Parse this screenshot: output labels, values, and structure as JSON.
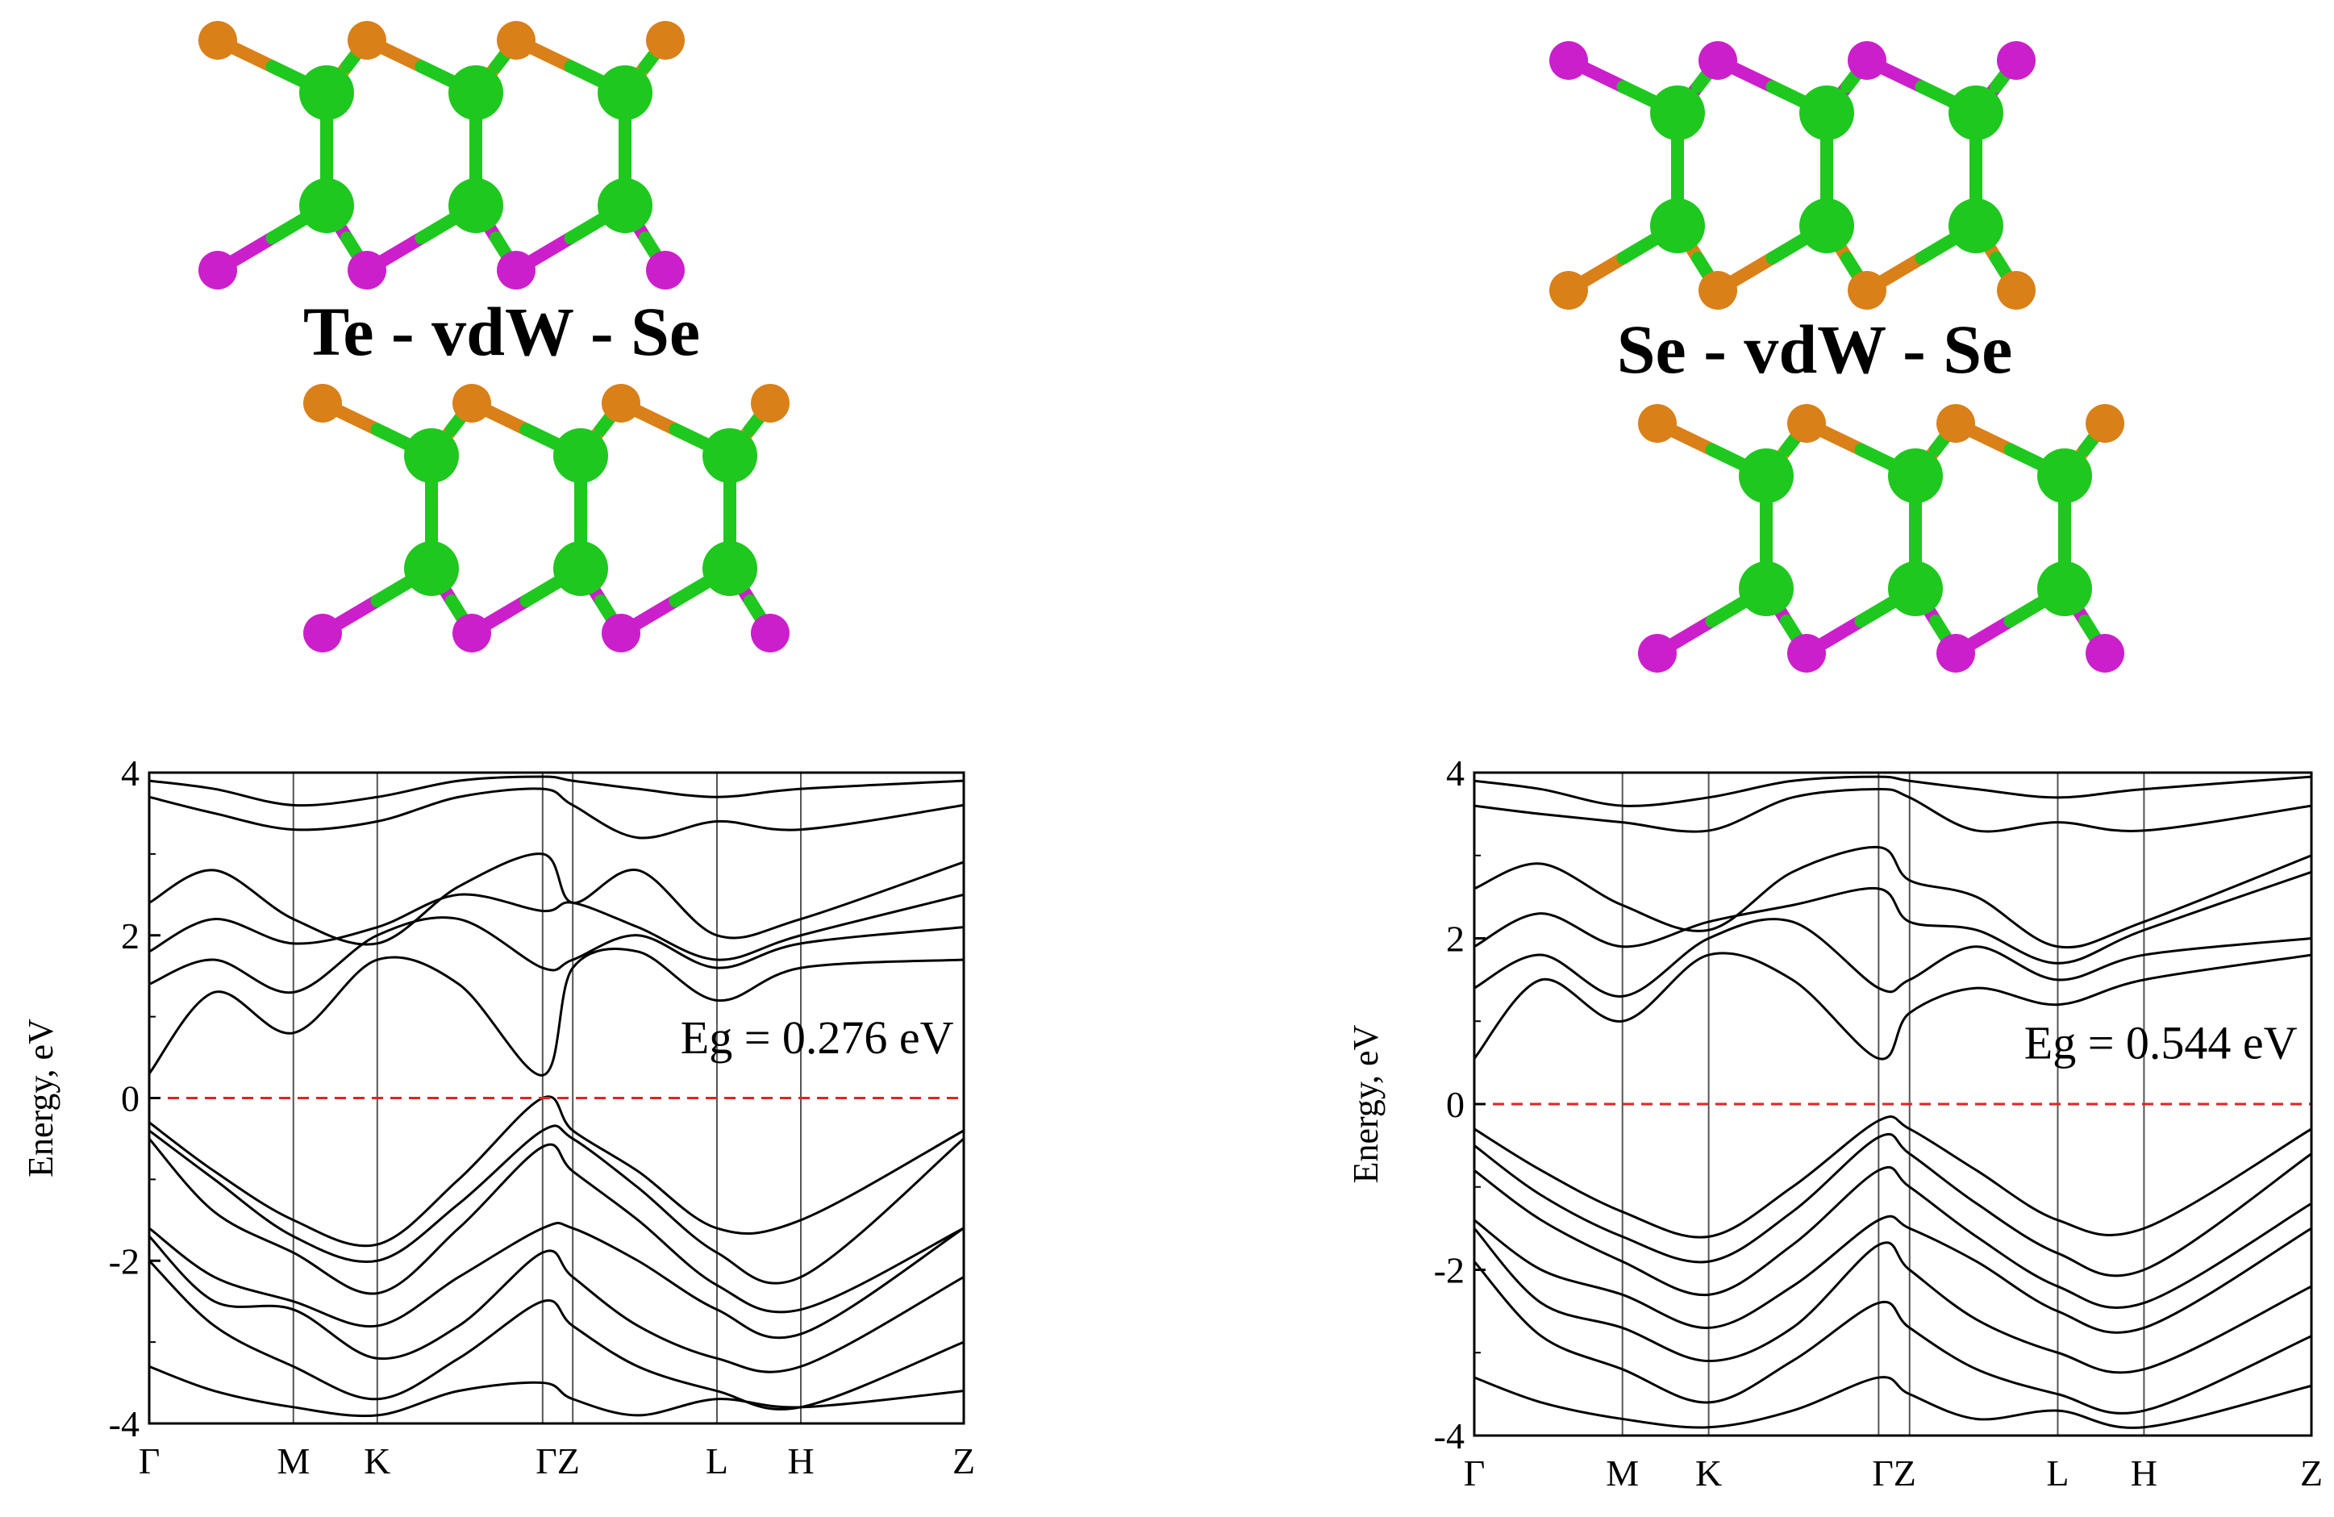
{
  "structures": [
    {
      "label": "Te - vdW - Se",
      "top_layer": {
        "upper_atom": "orange",
        "lower_atom": "magenta"
      },
      "bottom_layer": {
        "upper_atom": "orange",
        "lower_atom": "magenta"
      }
    },
    {
      "label": "Se - vdW - Se",
      "top_layer": {
        "upper_atom": "magenta",
        "lower_atom": "orange"
      },
      "bottom_layer": {
        "upper_atom": "orange",
        "lower_atom": "magenta"
      }
    }
  ],
  "atom_colors": {
    "green": "#1ec81e",
    "orange": "#d98018",
    "magenta": "#cc1fcc"
  },
  "fermi_color": "#e32222",
  "band_color": "#000000",
  "chart_data": [
    {
      "type": "line",
      "ylabel": "Energy, eV",
      "ylim": [
        -4,
        4
      ],
      "yticks": [
        "4",
        "2",
        "0",
        "-2",
        "-4"
      ],
      "kpoints": [
        {
          "label": "Γ",
          "x": 0
        },
        {
          "label": "M",
          "x": 0.177
        },
        {
          "label": "K",
          "x": 0.28
        },
        {
          "label": "Γ",
          "x": 0.483
        },
        {
          "label": "Z",
          "x": 0.52
        },
        {
          "label": "L",
          "x": 0.697
        },
        {
          "label": "H",
          "x": 0.8
        },
        {
          "label": "Z",
          "x": 1.0
        }
      ],
      "kpoint_text": [
        "Γ",
        "M",
        "K",
        "ΓZ",
        "L",
        "H",
        "Z"
      ],
      "annotation": "Eg = 0.276 eV",
      "fermi_level": 0,
      "bands": [
        {
          "x": [
            0,
            0.08,
            0.177,
            0.28,
            0.38,
            0.483,
            0.52,
            0.6,
            0.697,
            0.8,
            1.0
          ],
          "y": [
            0.3,
            1.3,
            0.8,
            1.7,
            1.4,
            0.28,
            1.6,
            1.8,
            1.2,
            1.6,
            1.7
          ]
        },
        {
          "x": [
            0,
            0.08,
            0.177,
            0.28,
            0.38,
            0.483,
            0.52,
            0.6,
            0.697,
            0.8,
            1.0
          ],
          "y": [
            1.4,
            1.7,
            1.3,
            2.0,
            2.2,
            1.6,
            1.7,
            2.0,
            1.6,
            1.9,
            2.1
          ]
        },
        {
          "x": [
            0,
            0.08,
            0.177,
            0.28,
            0.38,
            0.483,
            0.52,
            0.6,
            0.697,
            0.8,
            1.0
          ],
          "y": [
            1.8,
            2.2,
            1.9,
            2.1,
            2.5,
            2.3,
            2.4,
            2.1,
            1.7,
            2.0,
            2.5
          ]
        },
        {
          "x": [
            0,
            0.08,
            0.177,
            0.28,
            0.38,
            0.483,
            0.52,
            0.6,
            0.697,
            0.8,
            1.0
          ],
          "y": [
            2.4,
            2.8,
            2.2,
            1.9,
            2.6,
            3.0,
            2.4,
            2.8,
            2.0,
            2.2,
            2.9
          ]
        },
        {
          "x": [
            0,
            0.08,
            0.177,
            0.28,
            0.38,
            0.483,
            0.52,
            0.6,
            0.697,
            0.8,
            1.0
          ],
          "y": [
            3.7,
            3.5,
            3.3,
            3.4,
            3.7,
            3.8,
            3.6,
            3.2,
            3.4,
            3.3,
            3.6
          ]
        },
        {
          "x": [
            0,
            0.08,
            0.177,
            0.28,
            0.38,
            0.483,
            0.52,
            0.6,
            0.697,
            0.8,
            1.0
          ],
          "y": [
            3.9,
            3.8,
            3.6,
            3.7,
            3.9,
            3.95,
            3.9,
            3.8,
            3.7,
            3.8,
            3.9
          ]
        },
        {
          "x": [
            0,
            0.08,
            0.177,
            0.28,
            0.38,
            0.483,
            0.52,
            0.6,
            0.697,
            0.8,
            1.0
          ],
          "y": [
            -0.3,
            -0.9,
            -1.5,
            -1.8,
            -1.0,
            0.0,
            -0.4,
            -0.9,
            -1.6,
            -1.5,
            -0.4
          ]
        },
        {
          "x": [
            0,
            0.08,
            0.177,
            0.28,
            0.38,
            0.483,
            0.52,
            0.6,
            0.697,
            0.8,
            1.0
          ],
          "y": [
            -0.4,
            -1.0,
            -1.7,
            -2.0,
            -1.3,
            -0.4,
            -0.5,
            -1.1,
            -1.9,
            -2.2,
            -0.5
          ]
        },
        {
          "x": [
            0,
            0.08,
            0.177,
            0.28,
            0.38,
            0.483,
            0.52,
            0.6,
            0.697,
            0.8,
            1.0
          ],
          "y": [
            -0.5,
            -1.4,
            -1.9,
            -2.4,
            -1.6,
            -0.6,
            -0.9,
            -1.5,
            -2.3,
            -2.6,
            -1.6
          ]
        },
        {
          "x": [
            0,
            0.08,
            0.177,
            0.28,
            0.38,
            0.483,
            0.52,
            0.6,
            0.697,
            0.8,
            1.0
          ],
          "y": [
            -1.6,
            -2.2,
            -2.5,
            -2.8,
            -2.2,
            -1.6,
            -1.6,
            -2.0,
            -2.6,
            -2.9,
            -1.6
          ]
        },
        {
          "x": [
            0,
            0.08,
            0.177,
            0.28,
            0.38,
            0.483,
            0.52,
            0.6,
            0.697,
            0.8,
            1.0
          ],
          "y": [
            -1.7,
            -2.5,
            -2.6,
            -3.2,
            -2.8,
            -1.9,
            -2.2,
            -2.8,
            -3.2,
            -3.3,
            -2.2
          ]
        },
        {
          "x": [
            0,
            0.08,
            0.177,
            0.28,
            0.38,
            0.483,
            0.52,
            0.6,
            0.697,
            0.8,
            1.0
          ],
          "y": [
            -2.0,
            -2.8,
            -3.3,
            -3.7,
            -3.2,
            -2.5,
            -2.8,
            -3.3,
            -3.6,
            -3.8,
            -3.0
          ]
        },
        {
          "x": [
            0,
            0.08,
            0.177,
            0.28,
            0.38,
            0.483,
            0.52,
            0.6,
            0.697,
            0.8,
            1.0
          ],
          "y": [
            -3.3,
            -3.6,
            -3.8,
            -3.9,
            -3.6,
            -3.5,
            -3.7,
            -3.9,
            -3.7,
            -3.8,
            -3.6
          ]
        }
      ]
    },
    {
      "type": "line",
      "ylabel": "Energy, eV",
      "ylim": [
        -4,
        4
      ],
      "yticks": [
        "4",
        "2",
        "0",
        "-2",
        "-4"
      ],
      "kpoints": [
        {
          "label": "Γ",
          "x": 0
        },
        {
          "label": "M",
          "x": 0.177
        },
        {
          "label": "K",
          "x": 0.28
        },
        {
          "label": "Γ",
          "x": 0.483
        },
        {
          "label": "Z",
          "x": 0.52
        },
        {
          "label": "L",
          "x": 0.697
        },
        {
          "label": "H",
          "x": 0.8
        },
        {
          "label": "Z",
          "x": 1.0
        }
      ],
      "kpoint_text": [
        "Γ",
        "M",
        "K",
        "ΓZ",
        "L",
        "H",
        "Z"
      ],
      "annotation": "Eg = 0.544 eV",
      "fermi_level": 0,
      "bands": [
        {
          "x": [
            0,
            0.08,
            0.177,
            0.28,
            0.38,
            0.483,
            0.52,
            0.6,
            0.697,
            0.8,
            1.0
          ],
          "y": [
            0.55,
            1.5,
            1.0,
            1.8,
            1.5,
            0.55,
            1.1,
            1.4,
            1.2,
            1.5,
            1.8
          ]
        },
        {
          "x": [
            0,
            0.08,
            0.177,
            0.28,
            0.38,
            0.483,
            0.52,
            0.6,
            0.697,
            0.8,
            1.0
          ],
          "y": [
            1.4,
            1.8,
            1.3,
            2.0,
            2.2,
            1.4,
            1.5,
            1.9,
            1.5,
            1.8,
            2.0
          ]
        },
        {
          "x": [
            0,
            0.08,
            0.177,
            0.28,
            0.38,
            0.483,
            0.52,
            0.6,
            0.697,
            0.8,
            1.0
          ],
          "y": [
            1.9,
            2.3,
            1.9,
            2.2,
            2.4,
            2.6,
            2.2,
            2.1,
            1.7,
            2.1,
            2.8
          ]
        },
        {
          "x": [
            0,
            0.08,
            0.177,
            0.28,
            0.38,
            0.483,
            0.52,
            0.6,
            0.697,
            0.8,
            1.0
          ],
          "y": [
            2.6,
            2.9,
            2.4,
            2.1,
            2.8,
            3.1,
            2.7,
            2.5,
            1.9,
            2.2,
            3.0
          ]
        },
        {
          "x": [
            0,
            0.08,
            0.177,
            0.28,
            0.38,
            0.483,
            0.52,
            0.6,
            0.697,
            0.8,
            1.0
          ],
          "y": [
            3.6,
            3.5,
            3.4,
            3.3,
            3.7,
            3.8,
            3.7,
            3.3,
            3.4,
            3.3,
            3.6
          ]
        },
        {
          "x": [
            0,
            0.08,
            0.177,
            0.28,
            0.38,
            0.483,
            0.52,
            0.6,
            0.697,
            0.8,
            1.0
          ],
          "y": [
            3.9,
            3.8,
            3.6,
            3.7,
            3.9,
            3.95,
            3.9,
            3.8,
            3.7,
            3.8,
            3.95
          ]
        },
        {
          "x": [
            0,
            0.08,
            0.177,
            0.28,
            0.38,
            0.483,
            0.52,
            0.6,
            0.697,
            0.8,
            1.0
          ],
          "y": [
            -0.3,
            -0.8,
            -1.3,
            -1.6,
            -1.0,
            -0.2,
            -0.3,
            -0.8,
            -1.4,
            -1.5,
            -0.3
          ]
        },
        {
          "x": [
            0,
            0.08,
            0.177,
            0.28,
            0.38,
            0.483,
            0.52,
            0.6,
            0.697,
            0.8,
            1.0
          ],
          "y": [
            -0.5,
            -1.1,
            -1.6,
            -1.9,
            -1.3,
            -0.4,
            -0.6,
            -1.2,
            -1.8,
            -2.0,
            -0.6
          ]
        },
        {
          "x": [
            0,
            0.08,
            0.177,
            0.28,
            0.38,
            0.483,
            0.52,
            0.6,
            0.697,
            0.8,
            1.0
          ],
          "y": [
            -0.8,
            -1.4,
            -1.9,
            -2.3,
            -1.7,
            -0.8,
            -1.0,
            -1.6,
            -2.2,
            -2.4,
            -1.2
          ]
        },
        {
          "x": [
            0,
            0.08,
            0.177,
            0.28,
            0.38,
            0.483,
            0.52,
            0.6,
            0.697,
            0.8,
            1.0
          ],
          "y": [
            -1.4,
            -2.0,
            -2.3,
            -2.7,
            -2.2,
            -1.4,
            -1.5,
            -1.9,
            -2.5,
            -2.7,
            -1.5
          ]
        },
        {
          "x": [
            0,
            0.08,
            0.177,
            0.28,
            0.38,
            0.483,
            0.52,
            0.6,
            0.697,
            0.8,
            1.0
          ],
          "y": [
            -1.5,
            -2.4,
            -2.7,
            -3.1,
            -2.7,
            -1.7,
            -2.0,
            -2.6,
            -3.0,
            -3.2,
            -2.2
          ]
        },
        {
          "x": [
            0,
            0.08,
            0.177,
            0.28,
            0.38,
            0.483,
            0.52,
            0.6,
            0.697,
            0.8,
            1.0
          ],
          "y": [
            -1.9,
            -2.8,
            -3.2,
            -3.6,
            -3.1,
            -2.4,
            -2.7,
            -3.2,
            -3.5,
            -3.7,
            -2.8
          ]
        },
        {
          "x": [
            0,
            0.08,
            0.177,
            0.28,
            0.38,
            0.483,
            0.52,
            0.6,
            0.697,
            0.8,
            1.0
          ],
          "y": [
            -3.3,
            -3.6,
            -3.8,
            -3.9,
            -3.7,
            -3.3,
            -3.5,
            -3.8,
            -3.7,
            -3.9,
            -3.4
          ]
        }
      ]
    }
  ]
}
